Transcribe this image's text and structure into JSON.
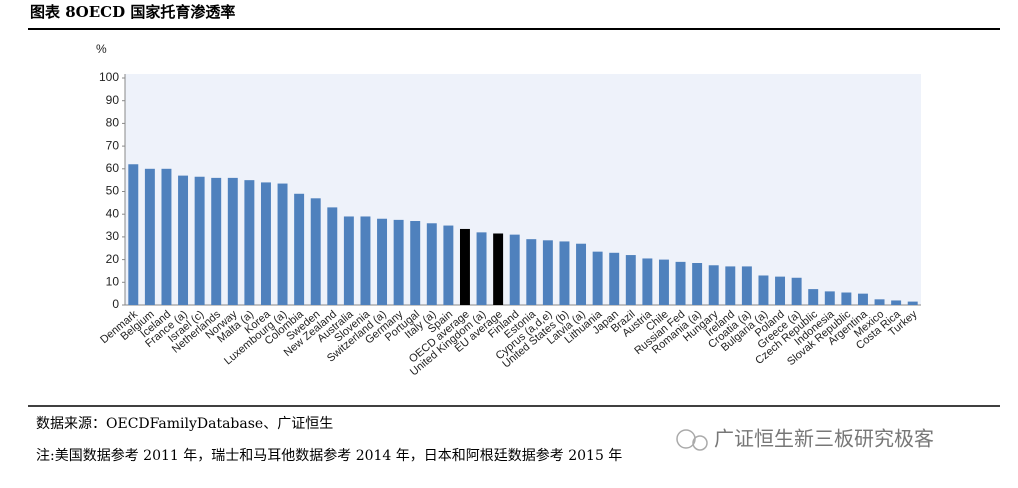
{
  "chart_data": {
    "type": "bar",
    "title": "图表 8OECD 国家托育渗透率",
    "y_label": "%",
    "categories": [
      "Denmark",
      "Belgium",
      "Iceland",
      "France (a)",
      "Israel (c)",
      "Netherlands",
      "Norway",
      "Malta (a)",
      "Korea",
      "Luxembourg (a)",
      "Colombia",
      "Sweden",
      "New Zealand",
      "Australia",
      "Slovenia",
      "Switzerland (a)",
      "Germany",
      "Portugal",
      "Italy (a)",
      "Spain",
      "OECD average",
      "United Kingdom (a)",
      "EU average",
      "Finland",
      "Estonia",
      "Cyprus (a,d,e)",
      "United States (b)",
      "Latvia (a)",
      "Lithuania",
      "Japan",
      "Brazil",
      "Austria",
      "Chile",
      "Russian Fed",
      "Romania (a)",
      "Hungary",
      "Ireland",
      "Croatia (a)",
      "Bulgaria (a)",
      "Poland",
      "Greece (a)",
      "Czech Republic",
      "Indonesia",
      "Slovak Republic",
      "Argentina",
      "Mexico",
      "Costa Rica",
      "Turkey"
    ],
    "values": [
      62,
      60,
      60,
      57,
      56.5,
      56,
      56,
      55,
      54,
      53.5,
      49,
      47,
      43,
      39,
      39,
      38,
      37.5,
      37,
      36,
      35,
      33.5,
      32,
      31.5,
      31,
      29,
      28.5,
      28,
      27,
      23.5,
      23,
      22,
      20.5,
      20,
      19,
      18.5,
      17.5,
      17,
      17,
      13,
      12.5,
      12,
      7,
      6,
      5.5,
      5,
      2.5,
      2,
      1.5
    ],
    "colors": [
      "#4f81bd",
      "#4f81bd",
      "#4f81bd",
      "#4f81bd",
      "#4f81bd",
      "#4f81bd",
      "#4f81bd",
      "#4f81bd",
      "#4f81bd",
      "#4f81bd",
      "#4f81bd",
      "#4f81bd",
      "#4f81bd",
      "#4f81bd",
      "#4f81bd",
      "#4f81bd",
      "#4f81bd",
      "#4f81bd",
      "#4f81bd",
      "#4f81bd",
      "#000000",
      "#4f81bd",
      "#000000",
      "#4f81bd",
      "#4f81bd",
      "#4f81bd",
      "#4f81bd",
      "#4f81bd",
      "#4f81bd",
      "#4f81bd",
      "#4f81bd",
      "#4f81bd",
      "#4f81bd",
      "#4f81bd",
      "#4f81bd",
      "#4f81bd",
      "#4f81bd",
      "#4f81bd",
      "#4f81bd",
      "#4f81bd",
      "#4f81bd",
      "#4f81bd",
      "#4f81bd",
      "#4f81bd",
      "#4f81bd",
      "#4f81bd",
      "#4f81bd",
      "#4f81bd"
    ],
    "ylim": [
      0,
      100
    ],
    "yticks": [
      0,
      10,
      20,
      30,
      40,
      50,
      60,
      70,
      80,
      90,
      100
    ],
    "grid": false
  },
  "source": "数据来源：OECDFamilyDatabase、广证恒生",
  "note": "注:美国数据参考 2011 年，瑞士和马耳他数据参考 2014 年，日本和阿根廷数据参考 2015 年",
  "watermark": "广证恒生新三板研究极客"
}
